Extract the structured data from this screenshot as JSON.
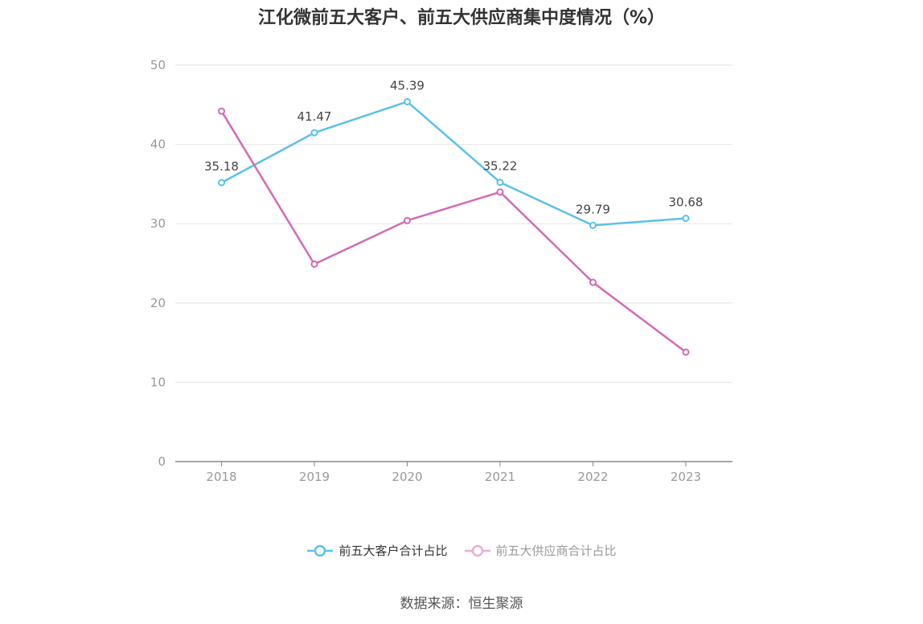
{
  "chart_data": {
    "type": "line",
    "title": "江化微前五大客户、前五大供应商集中度情况（%）",
    "x": [
      "2018",
      "2019",
      "2020",
      "2021",
      "2022",
      "2023"
    ],
    "yticks": [
      "0",
      "10",
      "20",
      "30",
      "40",
      "50"
    ],
    "ylim": [
      0,
      50
    ],
    "grid": true,
    "legend_position": "bottom",
    "series": [
      {
        "name": "前五大客户合计占比",
        "color": "#5bc0eb",
        "values": [
          35.18,
          41.47,
          45.39,
          35.22,
          29.79,
          30.68
        ],
        "labels": [
          "35.18",
          "41.47",
          "45.39",
          "35.22",
          "29.79",
          "30.68"
        ]
      },
      {
        "name": "前五大供应商合计占比",
        "color": "#d36bb4",
        "legend_color": "#e8aed6",
        "values": [
          44.2,
          24.9,
          30.4,
          34.0,
          22.6,
          13.8
        ]
      }
    ]
  },
  "source": "数据来源：恒生聚源"
}
